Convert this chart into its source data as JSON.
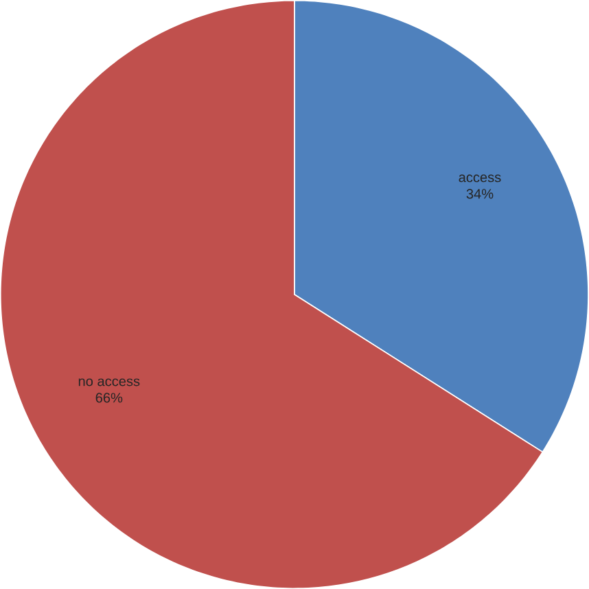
{
  "chart_data": {
    "type": "pie",
    "categories": [
      "access",
      "no access"
    ],
    "values": [
      34,
      66
    ],
    "colors": [
      "#4f81bd",
      "#c0504d"
    ],
    "value_labels": [
      "34%",
      "66%"
    ]
  }
}
